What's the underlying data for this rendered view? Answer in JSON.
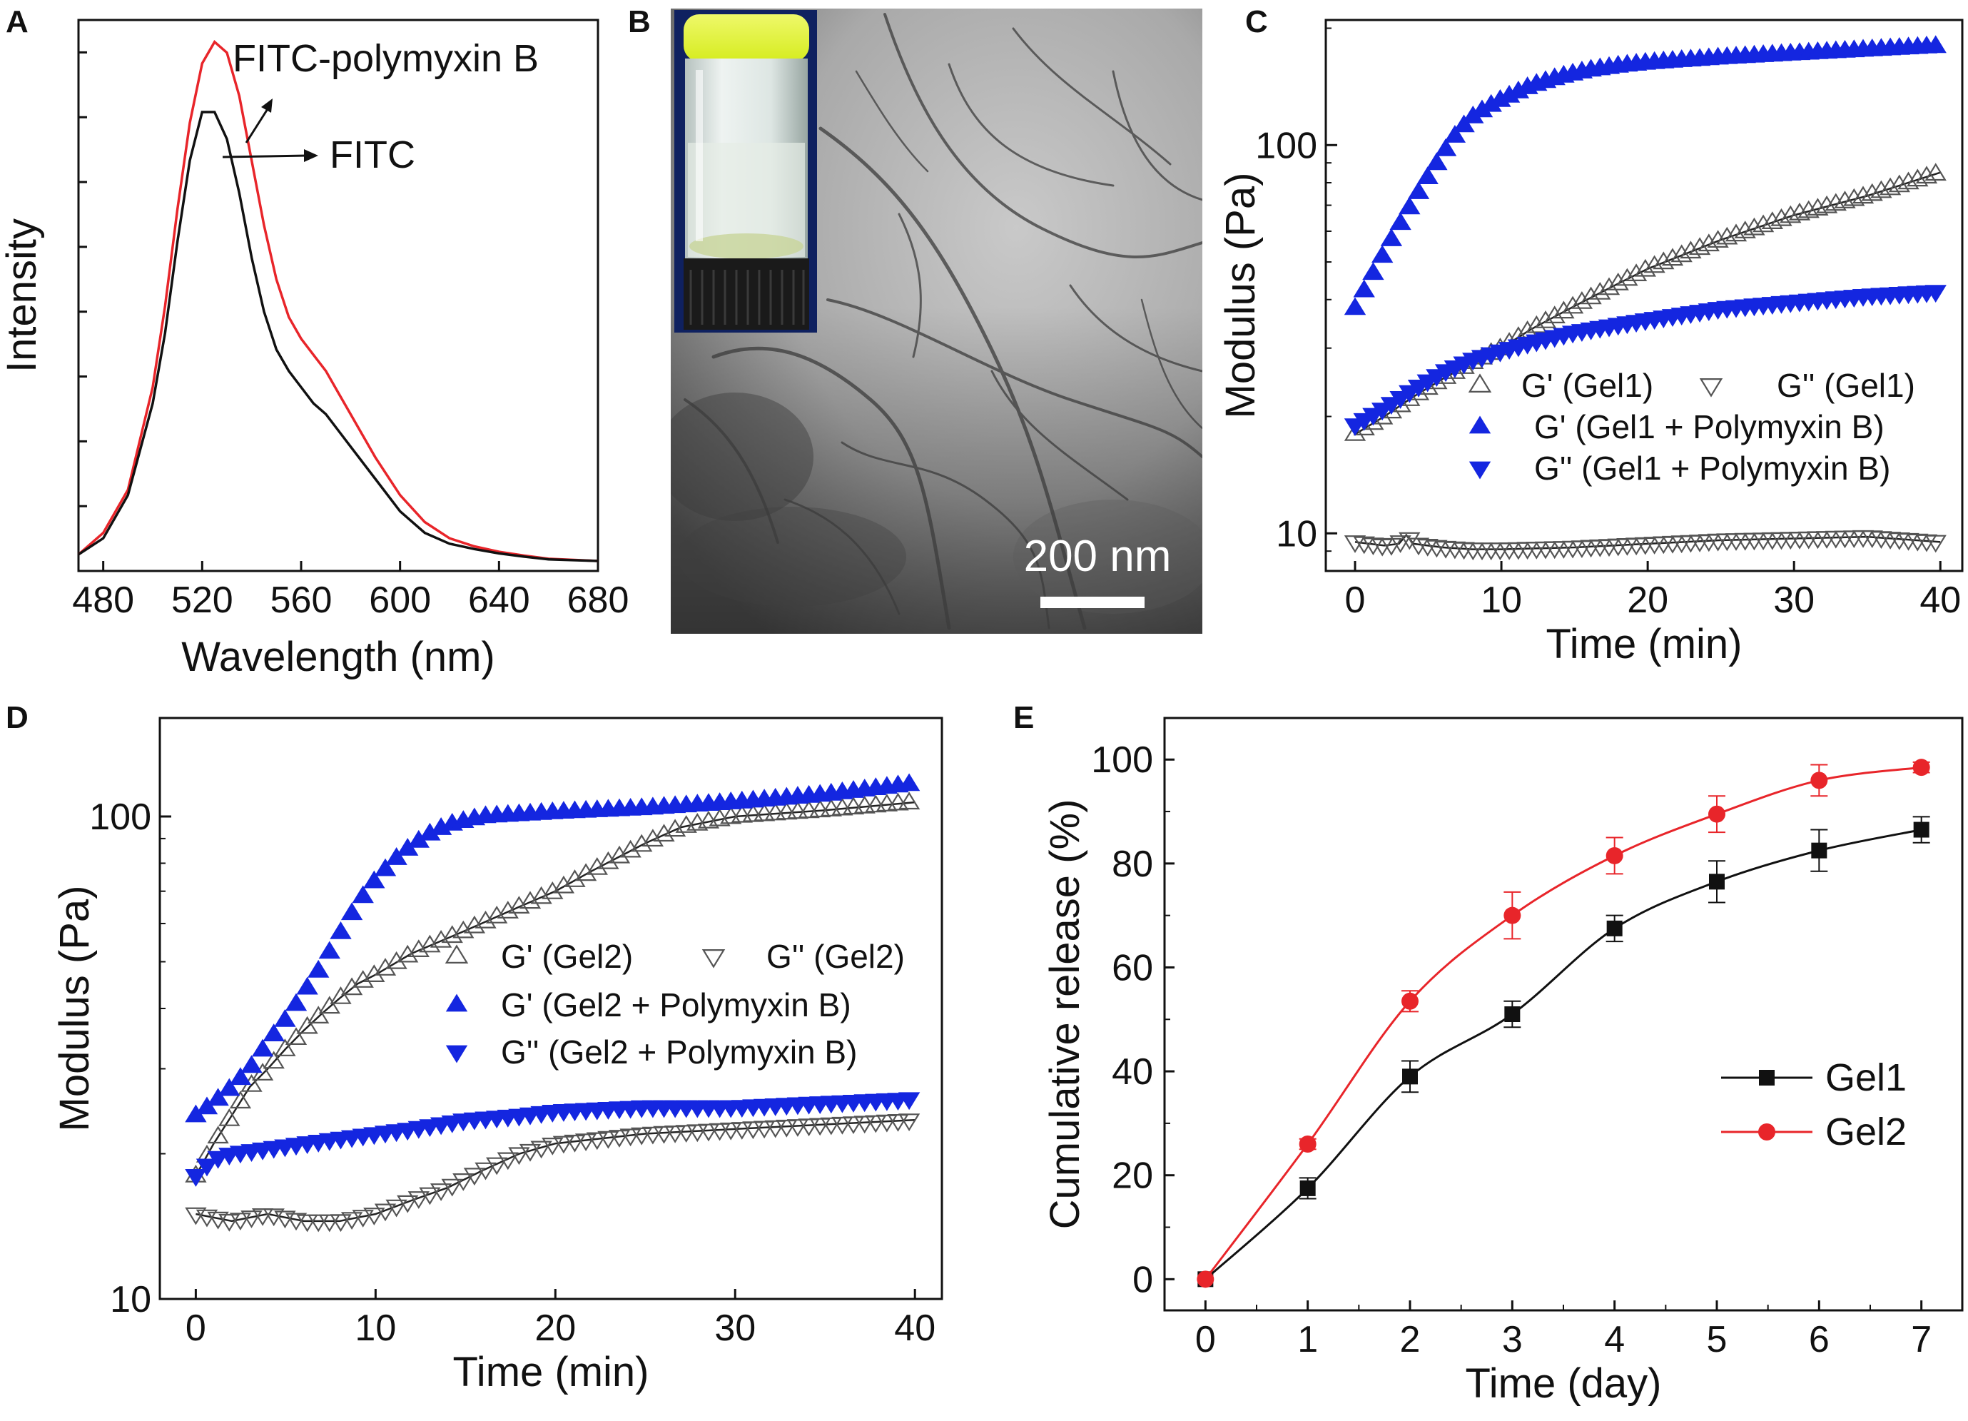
{
  "figure": {
    "panels": [
      {
        "letter": "A"
      },
      {
        "letter": "B",
        "scalebar_label": "200 nm",
        "description": "TEM micrograph with vial inset"
      },
      {
        "letter": "C"
      },
      {
        "letter": "D"
      },
      {
        "letter": "E"
      }
    ]
  },
  "colors": {
    "red": "#e8252a",
    "black": "#111111",
    "blue": "#1426e0",
    "gray": "#555555"
  },
  "chart_data": [
    {
      "panel": "A",
      "type": "line",
      "xlabel": "Wavelength (nm)",
      "ylabel": "Intensity",
      "xlim": [
        470,
        680
      ],
      "ylim": [
        0,
        100
      ],
      "xticks": [
        480,
        520,
        560,
        600,
        640,
        680
      ],
      "annotations": [
        "FITC-polymyxin B",
        "FITC"
      ],
      "series": [
        {
          "name": "FITC-polymyxin B",
          "color": "#e8252a",
          "x": [
            470,
            480,
            490,
            500,
            505,
            510,
            515,
            520,
            525,
            530,
            535,
            540,
            545,
            550,
            555,
            560,
            565,
            570,
            575,
            580,
            585,
            590,
            600,
            610,
            620,
            630,
            640,
            650,
            660,
            680
          ],
          "y": [
            2,
            6,
            14,
            33,
            48,
            66,
            82,
            93,
            97,
            95,
            87,
            75,
            63,
            53,
            46,
            42,
            39,
            36,
            32,
            28,
            24,
            20,
            13,
            8,
            5,
            3.5,
            2.5,
            1.8,
            1.2,
            0.8
          ]
        },
        {
          "name": "FITC",
          "color": "#111111",
          "x": [
            470,
            480,
            490,
            500,
            505,
            510,
            515,
            520,
            525,
            530,
            535,
            540,
            545,
            550,
            555,
            560,
            565,
            570,
            575,
            580,
            585,
            590,
            600,
            610,
            620,
            630,
            640,
            650,
            660,
            680
          ],
          "y": [
            2,
            5,
            13,
            30,
            43,
            60,
            75,
            84,
            84,
            79,
            69,
            57,
            47,
            40,
            36,
            33,
            30,
            28,
            25,
            22,
            19,
            16,
            10,
            6,
            4,
            3,
            2.2,
            1.6,
            1.1,
            0.8
          ]
        }
      ]
    },
    {
      "panel": "C",
      "type": "scatter",
      "yscale": "log",
      "xlabel": "Time (min)",
      "ylabel": "Modulus (Pa)",
      "xlim": [
        -2,
        41.5
      ],
      "ylim": [
        8,
        210
      ],
      "xticks": [
        0,
        10,
        20,
        30,
        40
      ],
      "yticks": [
        10,
        100
      ],
      "legend_layout": "top-row-two, then two rows",
      "series": [
        {
          "name": "G' (Gel1)",
          "marker": "tri-up-open",
          "color": "#555555",
          "x": [
            0,
            2,
            4,
            6,
            8,
            10,
            12,
            15,
            18,
            20,
            25,
            30,
            35,
            40
          ],
          "y": [
            18,
            20,
            22.5,
            25,
            27.5,
            30,
            33.5,
            38.5,
            44,
            48,
            57,
            66,
            74,
            85
          ]
        },
        {
          "name": "G'' (Gel1)",
          "marker": "tri-down-open",
          "color": "#555555",
          "x": [
            0,
            2,
            3,
            3.5,
            4,
            6,
            8,
            10,
            15,
            20,
            25,
            30,
            35,
            40
          ],
          "y": [
            9.5,
            9.3,
            9.4,
            9.9,
            9.4,
            9.2,
            9.1,
            9.1,
            9.2,
            9.4,
            9.6,
            9.7,
            9.8,
            9.5
          ]
        },
        {
          "name": "G' (Gel1 + Polymyxin B)",
          "marker": "tri-up-filled",
          "color": "#1426e0",
          "x": [
            0,
            1,
            2,
            3,
            4,
            5,
            6,
            7,
            8,
            9,
            10,
            12,
            14,
            16,
            18,
            20,
            25,
            30,
            35,
            40
          ],
          "y": [
            38,
            45,
            53,
            62,
            72,
            83,
            95,
            108,
            118,
            125,
            131,
            142,
            150,
            156,
            160,
            163,
            168,
            172,
            176,
            180
          ]
        },
        {
          "name": "G'' (Gel1 + Polymyxin B)",
          "marker": "tri-down-filled",
          "color": "#1426e0",
          "x": [
            0,
            2,
            4,
            6,
            8,
            10,
            12,
            15,
            18,
            20,
            25,
            30,
            35,
            40
          ],
          "y": [
            19,
            21,
            23.5,
            26,
            28,
            29.5,
            31,
            33,
            34.5,
            35.5,
            38,
            39.5,
            41,
            42
          ]
        }
      ]
    },
    {
      "panel": "D",
      "type": "scatter",
      "yscale": "log",
      "xlabel": "Time (min)",
      "ylabel": "Modulus (Pa)",
      "xlim": [
        -2,
        41.5
      ],
      "ylim": [
        10,
        160
      ],
      "xticks": [
        0,
        10,
        20,
        30,
        40
      ],
      "yticks": [
        10,
        100
      ],
      "series": [
        {
          "name": "G' (Gel2)",
          "marker": "tri-up-open",
          "color": "#555555",
          "x": [
            0,
            1,
            2,
            3,
            4,
            5,
            6,
            7,
            8,
            9,
            10,
            12,
            15,
            18,
            20,
            22,
            25,
            27,
            30,
            35,
            40
          ],
          "y": [
            18,
            21,
            24,
            27.5,
            30,
            33,
            36,
            39,
            42,
            45,
            47,
            52,
            58,
            65,
            70,
            77,
            88,
            95,
            100,
            103,
            107
          ]
        },
        {
          "name": "G'' (Gel2)",
          "marker": "tri-down-open",
          "color": "#555555",
          "x": [
            0,
            2,
            4,
            6,
            8,
            10,
            12,
            14,
            16,
            18,
            20,
            25,
            30,
            35,
            40
          ],
          "y": [
            15,
            14.5,
            15,
            14.5,
            14.5,
            15,
            16,
            17,
            18.5,
            20,
            21,
            22,
            22.5,
            23,
            23.5
          ]
        },
        {
          "name": "G' (Gel2 + Polymyxin B)",
          "marker": "tri-up-filled",
          "color": "#1426e0",
          "x": [
            0,
            1,
            2,
            3,
            4,
            5,
            6,
            7,
            8,
            9,
            10,
            11,
            12,
            13,
            14,
            15,
            16,
            18,
            20,
            25,
            30,
            35,
            40
          ],
          "y": [
            24,
            25.5,
            27.5,
            30,
            34,
            38,
            43,
            49,
            57,
            66,
            74,
            81,
            87,
            92,
            96,
            98,
            100,
            101,
            102,
            104,
            107,
            111,
            117
          ]
        },
        {
          "name": "G'' (Gel2 + Polymyxin B)",
          "marker": "tri-down-filled",
          "color": "#1426e0",
          "x": [
            0,
            1,
            2,
            4,
            6,
            8,
            10,
            12,
            15,
            18,
            20,
            25,
            30,
            35,
            40
          ],
          "y": [
            18,
            19.5,
            20,
            20.5,
            21,
            21.5,
            22,
            22.5,
            23.5,
            24,
            24.5,
            25,
            25,
            25.5,
            26
          ]
        }
      ]
    },
    {
      "panel": "E",
      "type": "line",
      "xlabel": "Time (day)",
      "ylabel": "Cumulative release (%)",
      "xlim": [
        -0.4,
        7.4
      ],
      "ylim": [
        -6,
        108
      ],
      "xticks": [
        0,
        1,
        2,
        3,
        4,
        5,
        6,
        7
      ],
      "yticks": [
        0,
        20,
        40,
        60,
        80,
        100
      ],
      "legend": "lower-right",
      "series": [
        {
          "name": "Gel1",
          "color": "#111111",
          "marker": "square",
          "x": [
            0,
            1,
            2,
            3,
            4,
            5,
            6,
            7
          ],
          "y": [
            0,
            17.5,
            39,
            51,
            67.5,
            76.5,
            82.5,
            86.5
          ],
          "err": [
            0,
            2,
            3,
            2.5,
            2.5,
            4,
            4,
            2.5
          ]
        },
        {
          "name": "Gel2",
          "color": "#e8252a",
          "marker": "circle",
          "x": [
            0,
            1,
            2,
            3,
            4,
            5,
            6,
            7
          ],
          "y": [
            0,
            26,
            53.5,
            70,
            81.5,
            89.5,
            96,
            98.5
          ],
          "err": [
            0,
            1,
            2,
            4.5,
            3.5,
            3.5,
            3,
            1
          ]
        }
      ]
    }
  ]
}
